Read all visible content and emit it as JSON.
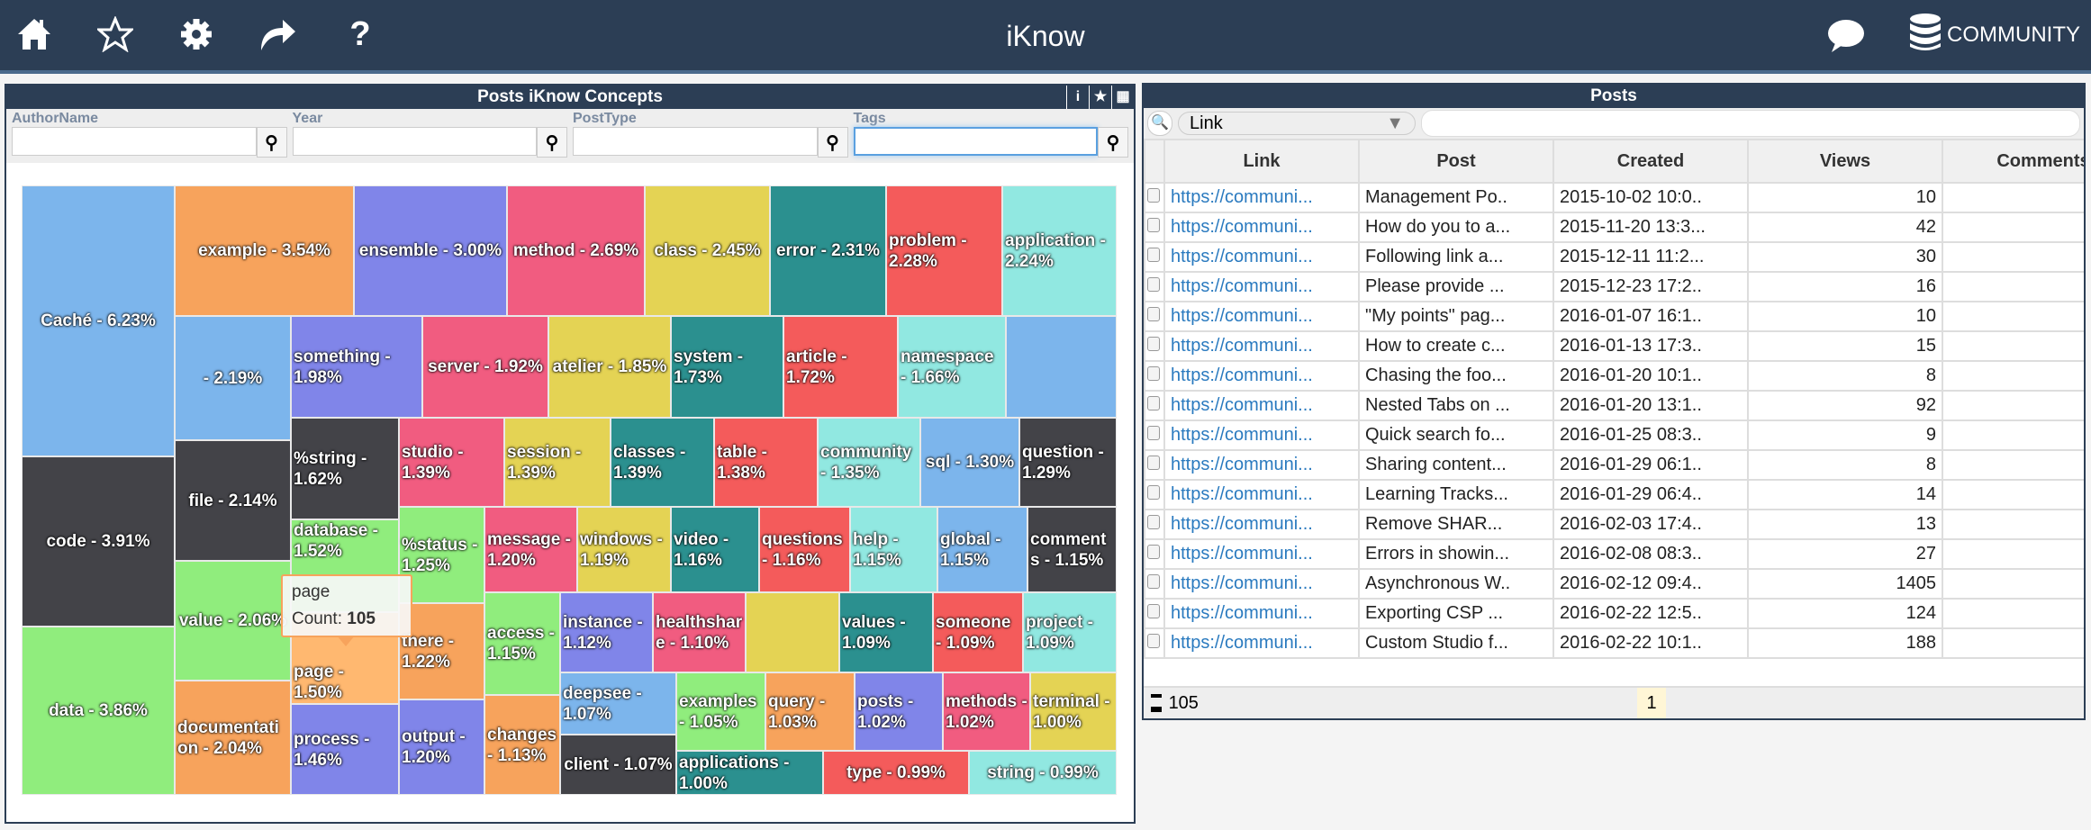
{
  "header": {
    "title": "iKnow",
    "community_label": "COMMUNITY",
    "icons": [
      "home-icon",
      "star-icon",
      "gear-icon",
      "share-icon",
      "help-icon",
      "chat-icon",
      "database-icon"
    ],
    "color": "#2c3e55"
  },
  "left_panel": {
    "title": "Posts iKnow Concepts",
    "tools": {
      "info": "i",
      "fav": "★",
      "grid": "▦"
    },
    "filters": [
      {
        "label": "AuthorName",
        "value": ""
      },
      {
        "label": "Year",
        "value": ""
      },
      {
        "label": "PostType",
        "value": ""
      },
      {
        "label": "Tags",
        "value": ""
      }
    ],
    "tooltip": {
      "name": "page",
      "count_label": "Count:",
      "count": "105"
    },
    "treemap": [
      {
        "label": "Caché - 6.23%",
        "name": "Caché",
        "pct": 6.23,
        "color": "#7cb5ec"
      },
      {
        "label": "code - 3.91%",
        "name": "code",
        "pct": 3.91,
        "color": "#434348"
      },
      {
        "label": "data - 3.86%",
        "name": "data",
        "pct": 3.86,
        "color": "#90ed7d"
      },
      {
        "label": "example - 3.54%",
        "name": "example",
        "pct": 3.54,
        "color": "#f7a35c"
      },
      {
        "label": "ensemble - 3.00%",
        "name": "ensemble",
        "pct": 3.0,
        "color": "#8085e9"
      },
      {
        "label": "method - 2.69%",
        "name": "method",
        "pct": 2.69,
        "color": "#f15c80"
      },
      {
        "label": "class - 2.45%",
        "name": "class",
        "pct": 2.45,
        "color": "#e4d354"
      },
      {
        "label": "error - 2.31%",
        "name": "error",
        "pct": 2.31,
        "color": "#2b908f"
      },
      {
        "label": "problem - 2.28%",
        "name": "problem",
        "pct": 2.28,
        "color": "#f45b5b"
      },
      {
        "label": "application - 2.24%",
        "name": "application",
        "pct": 2.24,
        "color": "#91e8e1"
      },
      {
        "label": "- 2.19%",
        "name": "",
        "pct": 2.19,
        "color": "#7cb5ec"
      },
      {
        "label": "something - 1.98%",
        "name": "something",
        "pct": 1.98,
        "color": "#8085e9"
      },
      {
        "label": "server - 1.92%",
        "name": "server",
        "pct": 1.92,
        "color": "#f15c80"
      },
      {
        "label": "atelier - 1.85%",
        "name": "atelier",
        "pct": 1.85,
        "color": "#e4d354"
      },
      {
        "label": "system - 1.73%",
        "name": "system",
        "pct": 1.73,
        "color": "#2b908f"
      },
      {
        "label": "article - 1.72%",
        "name": "article",
        "pct": 1.72,
        "color": "#f45b5b"
      },
      {
        "label": "namespace - 1.66%",
        "name": "namespace",
        "pct": 1.66,
        "color": "#91e8e1"
      },
      {
        "label": "",
        "name": "",
        "pct": null,
        "color": "#7cb5ec"
      },
      {
        "label": "file - 2.14%",
        "name": "file",
        "pct": 2.14,
        "color": "#434348"
      },
      {
        "label": "value - 2.06%",
        "name": "value",
        "pct": 2.06,
        "color": "#90ed7d"
      },
      {
        "label": "documentation - 2.04%",
        "name": "documentation",
        "pct": 2.04,
        "color": "#f7a35c"
      },
      {
        "label": "%string - 1.62%",
        "name": "%string",
        "pct": 1.62,
        "color": "#434348"
      },
      {
        "label": "database - 1.52%",
        "name": "database",
        "pct": 1.52,
        "color": "#90ed7d"
      },
      {
        "label": "page - 1.50%",
        "name": "page",
        "pct": 1.5,
        "color": "#ffb870"
      },
      {
        "label": "process - 1.46%",
        "name": "process",
        "pct": 1.46,
        "color": "#8085e9"
      },
      {
        "label": "studio - 1.39%",
        "name": "studio",
        "pct": 1.39,
        "color": "#f15c80"
      },
      {
        "label": "session - 1.39%",
        "name": "session",
        "pct": 1.39,
        "color": "#e4d354"
      },
      {
        "label": "classes - 1.39%",
        "name": "classes",
        "pct": 1.39,
        "color": "#2b908f"
      },
      {
        "label": "table - 1.38%",
        "name": "table",
        "pct": 1.38,
        "color": "#f45b5b"
      },
      {
        "label": "community - 1.35%",
        "name": "community",
        "pct": 1.35,
        "color": "#91e8e1"
      },
      {
        "label": "sql - 1.30%",
        "name": "sql",
        "pct": 1.3,
        "color": "#7cb5ec"
      },
      {
        "label": "question - 1.29%",
        "name": "question",
        "pct": 1.29,
        "color": "#434348"
      },
      {
        "label": "%status - 1.25%",
        "name": "%status",
        "pct": 1.25,
        "color": "#90ed7d"
      },
      {
        "label": "there - 1.22%",
        "name": "there",
        "pct": 1.22,
        "color": "#f7a35c"
      },
      {
        "label": "output - 1.20%",
        "name": "output",
        "pct": 1.2,
        "color": "#8085e9"
      },
      {
        "label": "message - 1.20%",
        "name": "message",
        "pct": 1.2,
        "color": "#f15c80"
      },
      {
        "label": "windows - 1.19%",
        "name": "windows",
        "pct": 1.19,
        "color": "#e4d354"
      },
      {
        "label": "video - 1.16%",
        "name": "video",
        "pct": 1.16,
        "color": "#2b908f"
      },
      {
        "label": "questions - 1.16%",
        "name": "questions",
        "pct": 1.16,
        "color": "#f45b5b"
      },
      {
        "label": "help - 1.15%",
        "name": "help",
        "pct": 1.15,
        "color": "#91e8e1"
      },
      {
        "label": "global - 1.15%",
        "name": "global",
        "pct": 1.15,
        "color": "#7cb5ec"
      },
      {
        "label": "comments - 1.15%",
        "name": "comments",
        "pct": 1.15,
        "color": "#434348"
      },
      {
        "label": "access - 1.15%",
        "name": "access",
        "pct": 1.15,
        "color": "#90ed7d"
      },
      {
        "label": "changes - 1.13%",
        "name": "changes",
        "pct": 1.13,
        "color": "#f7a35c"
      },
      {
        "label": "instance - 1.12%",
        "name": "instance",
        "pct": 1.12,
        "color": "#8085e9"
      },
      {
        "label": "healthshare - 1.10%",
        "name": "healthshare",
        "pct": 1.1,
        "color": "#f15c80"
      },
      {
        "label": "",
        "name": "",
        "pct": null,
        "color": "#e4d354"
      },
      {
        "label": "values - 1.09%",
        "name": "values",
        "pct": 1.09,
        "color": "#2b908f"
      },
      {
        "label": "someone - 1.09%",
        "name": "someone",
        "pct": 1.09,
        "color": "#f45b5b"
      },
      {
        "label": "project - 1.09%",
        "name": "project",
        "pct": 1.09,
        "color": "#91e8e1"
      },
      {
        "label": "deepsee - 1.07%",
        "name": "deepsee",
        "pct": 1.07,
        "color": "#7cb5ec"
      },
      {
        "label": "client - 1.07%",
        "name": "client",
        "pct": 1.07,
        "color": "#434348"
      },
      {
        "label": "examples - 1.05%",
        "name": "examples",
        "pct": 1.05,
        "color": "#90ed7d"
      },
      {
        "label": "query - 1.03%",
        "name": "query",
        "pct": 1.03,
        "color": "#f7a35c"
      },
      {
        "label": "posts - 1.02%",
        "name": "posts",
        "pct": 1.02,
        "color": "#8085e9"
      },
      {
        "label": "methods - 1.02%",
        "name": "methods",
        "pct": 1.02,
        "color": "#f15c80"
      },
      {
        "label": "terminal - 1.00%",
        "name": "terminal",
        "pct": 1.0,
        "color": "#e4d354"
      },
      {
        "label": "applications - 1.00%",
        "name": "applications",
        "pct": 1.0,
        "color": "#2b908f"
      },
      {
        "label": "type - 0.99%",
        "name": "type",
        "pct": 0.99,
        "color": "#f45b5b"
      },
      {
        "label": "string - 0.99%",
        "name": "string",
        "pct": 0.99,
        "color": "#91e8e1"
      }
    ]
  },
  "right_panel": {
    "title": "Posts",
    "search_field": "Link",
    "search_value": "",
    "columns": [
      "Link",
      "Post",
      "Created",
      "Views",
      "Comments"
    ],
    "rows": [
      [
        "https://communi...",
        "Management Po..",
        "2015-10-02 10:0..",
        "10",
        ""
      ],
      [
        "https://communi...",
        "How do you to a...",
        "2015-11-20 13:3...",
        "42",
        ""
      ],
      [
        "https://communi...",
        "Following link a...",
        "2015-12-11 11:2...",
        "30",
        ""
      ],
      [
        "https://communi...",
        "Please provide ...",
        "2015-12-23 17:2..",
        "16",
        ""
      ],
      [
        "https://communi...",
        "\"My points\" pag...",
        "2016-01-07 16:1..",
        "10",
        ""
      ],
      [
        "https://communi...",
        "How to create c...",
        "2016-01-13 17:3..",
        "15",
        ""
      ],
      [
        "https://communi...",
        "Chasing the foo...",
        "2016-01-20 10:1..",
        "8",
        ""
      ],
      [
        "https://communi...",
        "Nested Tabs on ...",
        "2016-01-20 13:1..",
        "92",
        ""
      ],
      [
        "https://communi...",
        "Quick search fo...",
        "2016-01-25 08:3..",
        "9",
        ""
      ],
      [
        "https://communi...",
        "Sharing content...",
        "2016-01-29 06:1..",
        "8",
        ""
      ],
      [
        "https://communi...",
        "Learning Tracks...",
        "2016-01-29 06:4..",
        "14",
        ""
      ],
      [
        "https://communi...",
        "Remove SHAR...",
        "2016-02-03 17:4..",
        "13",
        ""
      ],
      [
        "https://communi...",
        "Errors in showin...",
        "2016-02-08 08:3..",
        "27",
        ""
      ],
      [
        "https://communi...",
        "Asynchronous W..",
        "2016-02-12 09:4..",
        "1405",
        ""
      ],
      [
        "https://communi...",
        "Exporting CSP ...",
        "2016-02-22 12:5..",
        "124",
        ""
      ],
      [
        "https://communi...",
        "Custom Studio f...",
        "2016-02-22 10:1..",
        "188",
        ""
      ]
    ],
    "total": "105",
    "page": "1"
  }
}
